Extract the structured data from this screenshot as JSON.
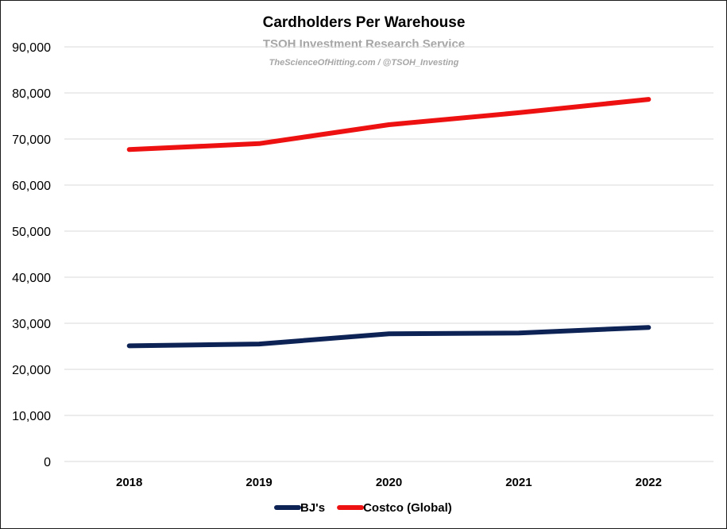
{
  "chart_data": {
    "type": "line",
    "title": "Cardholders Per Warehouse",
    "subtitle": "TSOH Investment Research Service",
    "credit": "TheScienceOfHitting.com / @TSOH_Investing",
    "xlabel": "",
    "ylabel": "",
    "categories": [
      "2018",
      "2019",
      "2020",
      "2021",
      "2022"
    ],
    "ylim": [
      0,
      90000
    ],
    "yticks": [
      0,
      10000,
      20000,
      30000,
      40000,
      50000,
      60000,
      70000,
      80000,
      90000
    ],
    "ytick_labels": [
      "0",
      "10,000",
      "20,000",
      "30,000",
      "40,000",
      "50,000",
      "60,000",
      "70,000",
      "80,000",
      "90,000"
    ],
    "grid": true,
    "legend_position": "bottom",
    "series": [
      {
        "name": "BJ's",
        "color": "#0d2356",
        "values": [
          25100,
          25500,
          27700,
          27900,
          29100
        ]
      },
      {
        "name": "Costco (Global)",
        "color": "#ee1111",
        "values": [
          67700,
          69000,
          73100,
          75700,
          78600
        ]
      }
    ]
  }
}
